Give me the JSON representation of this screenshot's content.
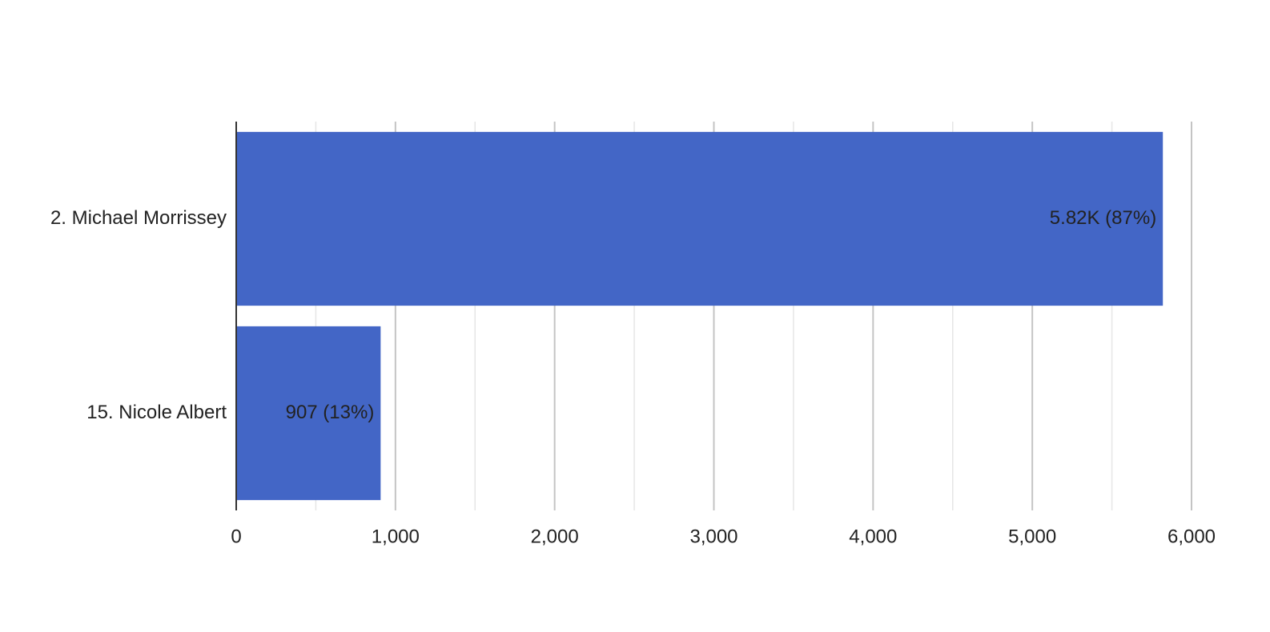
{
  "chart_data": {
    "type": "hbar",
    "categories": [
      "2. Michael Morrissey",
      "15. Nicole Albert"
    ],
    "values": [
      5820,
      907
    ],
    "value_labels": [
      "5.82K (87%)",
      "907 (13%)"
    ],
    "color": "#4366c6",
    "xlim": [
      0,
      6000
    ],
    "xticks": [
      0,
      {
        "value": 1000,
        "label": "1,000"
      },
      {
        "value": 2000,
        "label": "2,000"
      },
      {
        "value": 3000,
        "label": "3,000"
      },
      {
        "value": 4000,
        "label": "4,000"
      },
      {
        "value": 5000,
        "label": "5,000"
      },
      {
        "value": 6000,
        "label": "6,000"
      }
    ],
    "minor_grid": [
      500,
      1500,
      2500,
      3500,
      4500,
      5500
    ],
    "grid": true
  }
}
